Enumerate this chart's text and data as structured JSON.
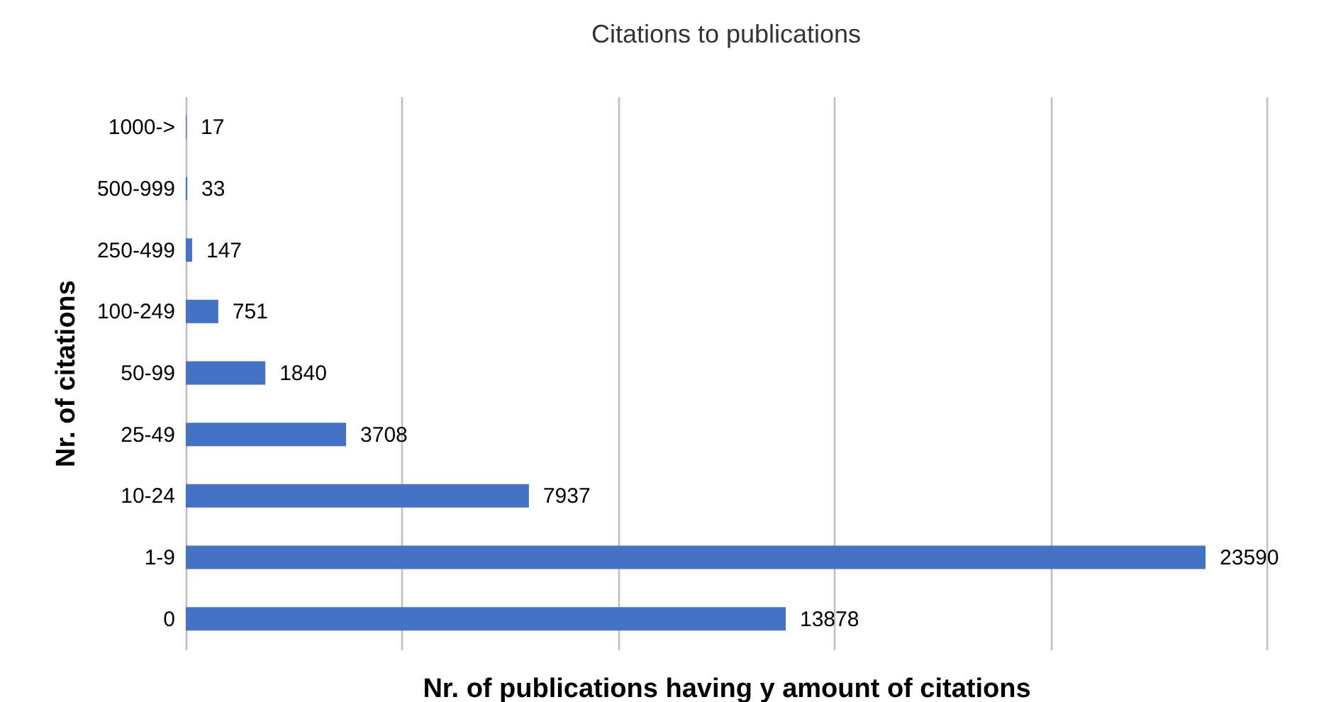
{
  "chart_data": {
    "type": "bar",
    "orientation": "horizontal",
    "title": "Citations to publications",
    "xlabel": "Nr. of publications having y amount of citations",
    "ylabel": "Nr. of citations",
    "categories": [
      "1000->",
      "500-999",
      "250-499",
      "100-249",
      "50-99",
      "25-49",
      "10-24",
      "1-9",
      "0"
    ],
    "values": [
      17,
      33,
      147,
      751,
      1840,
      3708,
      7937,
      23590,
      13878
    ],
    "color": "#4472c4",
    "data_labels": true,
    "grid": "x",
    "tick_labels": "y",
    "xlim": [
      0,
      25000
    ],
    "xticks": [
      {
        "value": 0,
        "label": null
      },
      {
        "value": 5000,
        "label": null
      },
      {
        "value": 10000,
        "label": null
      },
      {
        "value": 15000,
        "label": null
      },
      {
        "value": 20000,
        "label": null
      },
      {
        "value": 25000,
        "label": null
      }
    ]
  }
}
